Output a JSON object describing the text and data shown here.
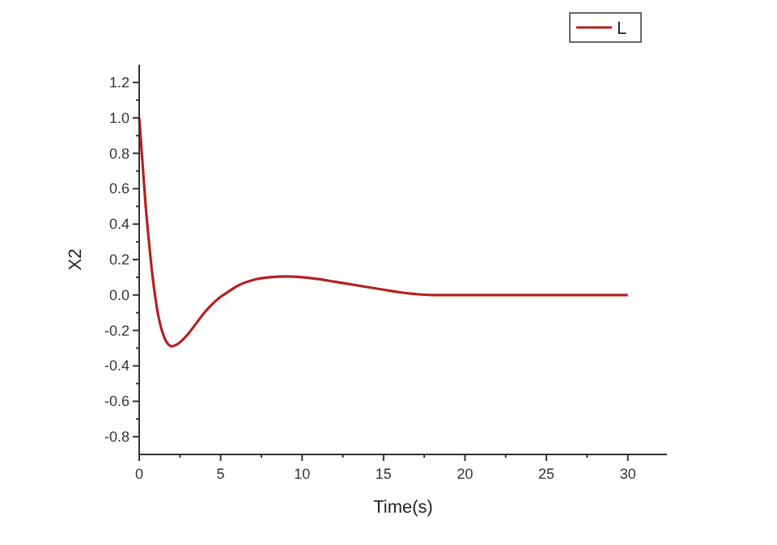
{
  "chart_data": {
    "type": "line",
    "xlabel": "Time(s)",
    "ylabel": "X2",
    "xlim": [
      0,
      32.4
    ],
    "xticks": [
      0,
      5,
      10,
      15,
      20,
      25,
      30
    ],
    "ylim": [
      -0.9,
      1.3
    ],
    "yticks": [
      {
        "value": -0.8,
        "label": "-0.8"
      },
      {
        "value": -0.6,
        "label": "-0.6"
      },
      {
        "value": -0.4,
        "label": "-0.4"
      },
      {
        "value": -0.2,
        "label": "-0.2"
      },
      {
        "value": 0,
        "label": "0.0"
      },
      {
        "value": 0.2,
        "label": "0.2"
      },
      {
        "value": 0.4,
        "label": "0.4"
      },
      {
        "value": 0.6,
        "label": "0.6"
      },
      {
        "value": 0.8,
        "label": "0.8"
      },
      {
        "value": 1,
        "label": "1.0"
      },
      {
        "value": 1.2,
        "label": "1.2"
      }
    ],
    "legend": "top right",
    "line_style": "solid",
    "marker": "none",
    "series": [
      {
        "name": "L",
        "color": "#b22222",
        "x": [
          0,
          0.2,
          0.4,
          0.6,
          0.8,
          1,
          1.2,
          1.5,
          1.8,
          2,
          2.3,
          2.7,
          3,
          3.5,
          4,
          4.5,
          5,
          5.5,
          6,
          7,
          8,
          9,
          10,
          11,
          12,
          13,
          14,
          15,
          16,
          17,
          18,
          20,
          25,
          30
        ],
        "values": [
          1,
          0.75,
          0.5,
          0.3,
          0.12,
          -0.02,
          -0.13,
          -0.23,
          -0.28,
          -0.29,
          -0.28,
          -0.25,
          -0.22,
          -0.16,
          -0.1,
          -0.05,
          -0.01,
          0.02,
          0.05,
          0.085,
          0.1,
          0.105,
          0.1,
          0.09,
          0.075,
          0.06,
          0.045,
          0.03,
          0.015,
          0.005,
          0,
          0,
          0,
          0
        ]
      }
    ]
  }
}
